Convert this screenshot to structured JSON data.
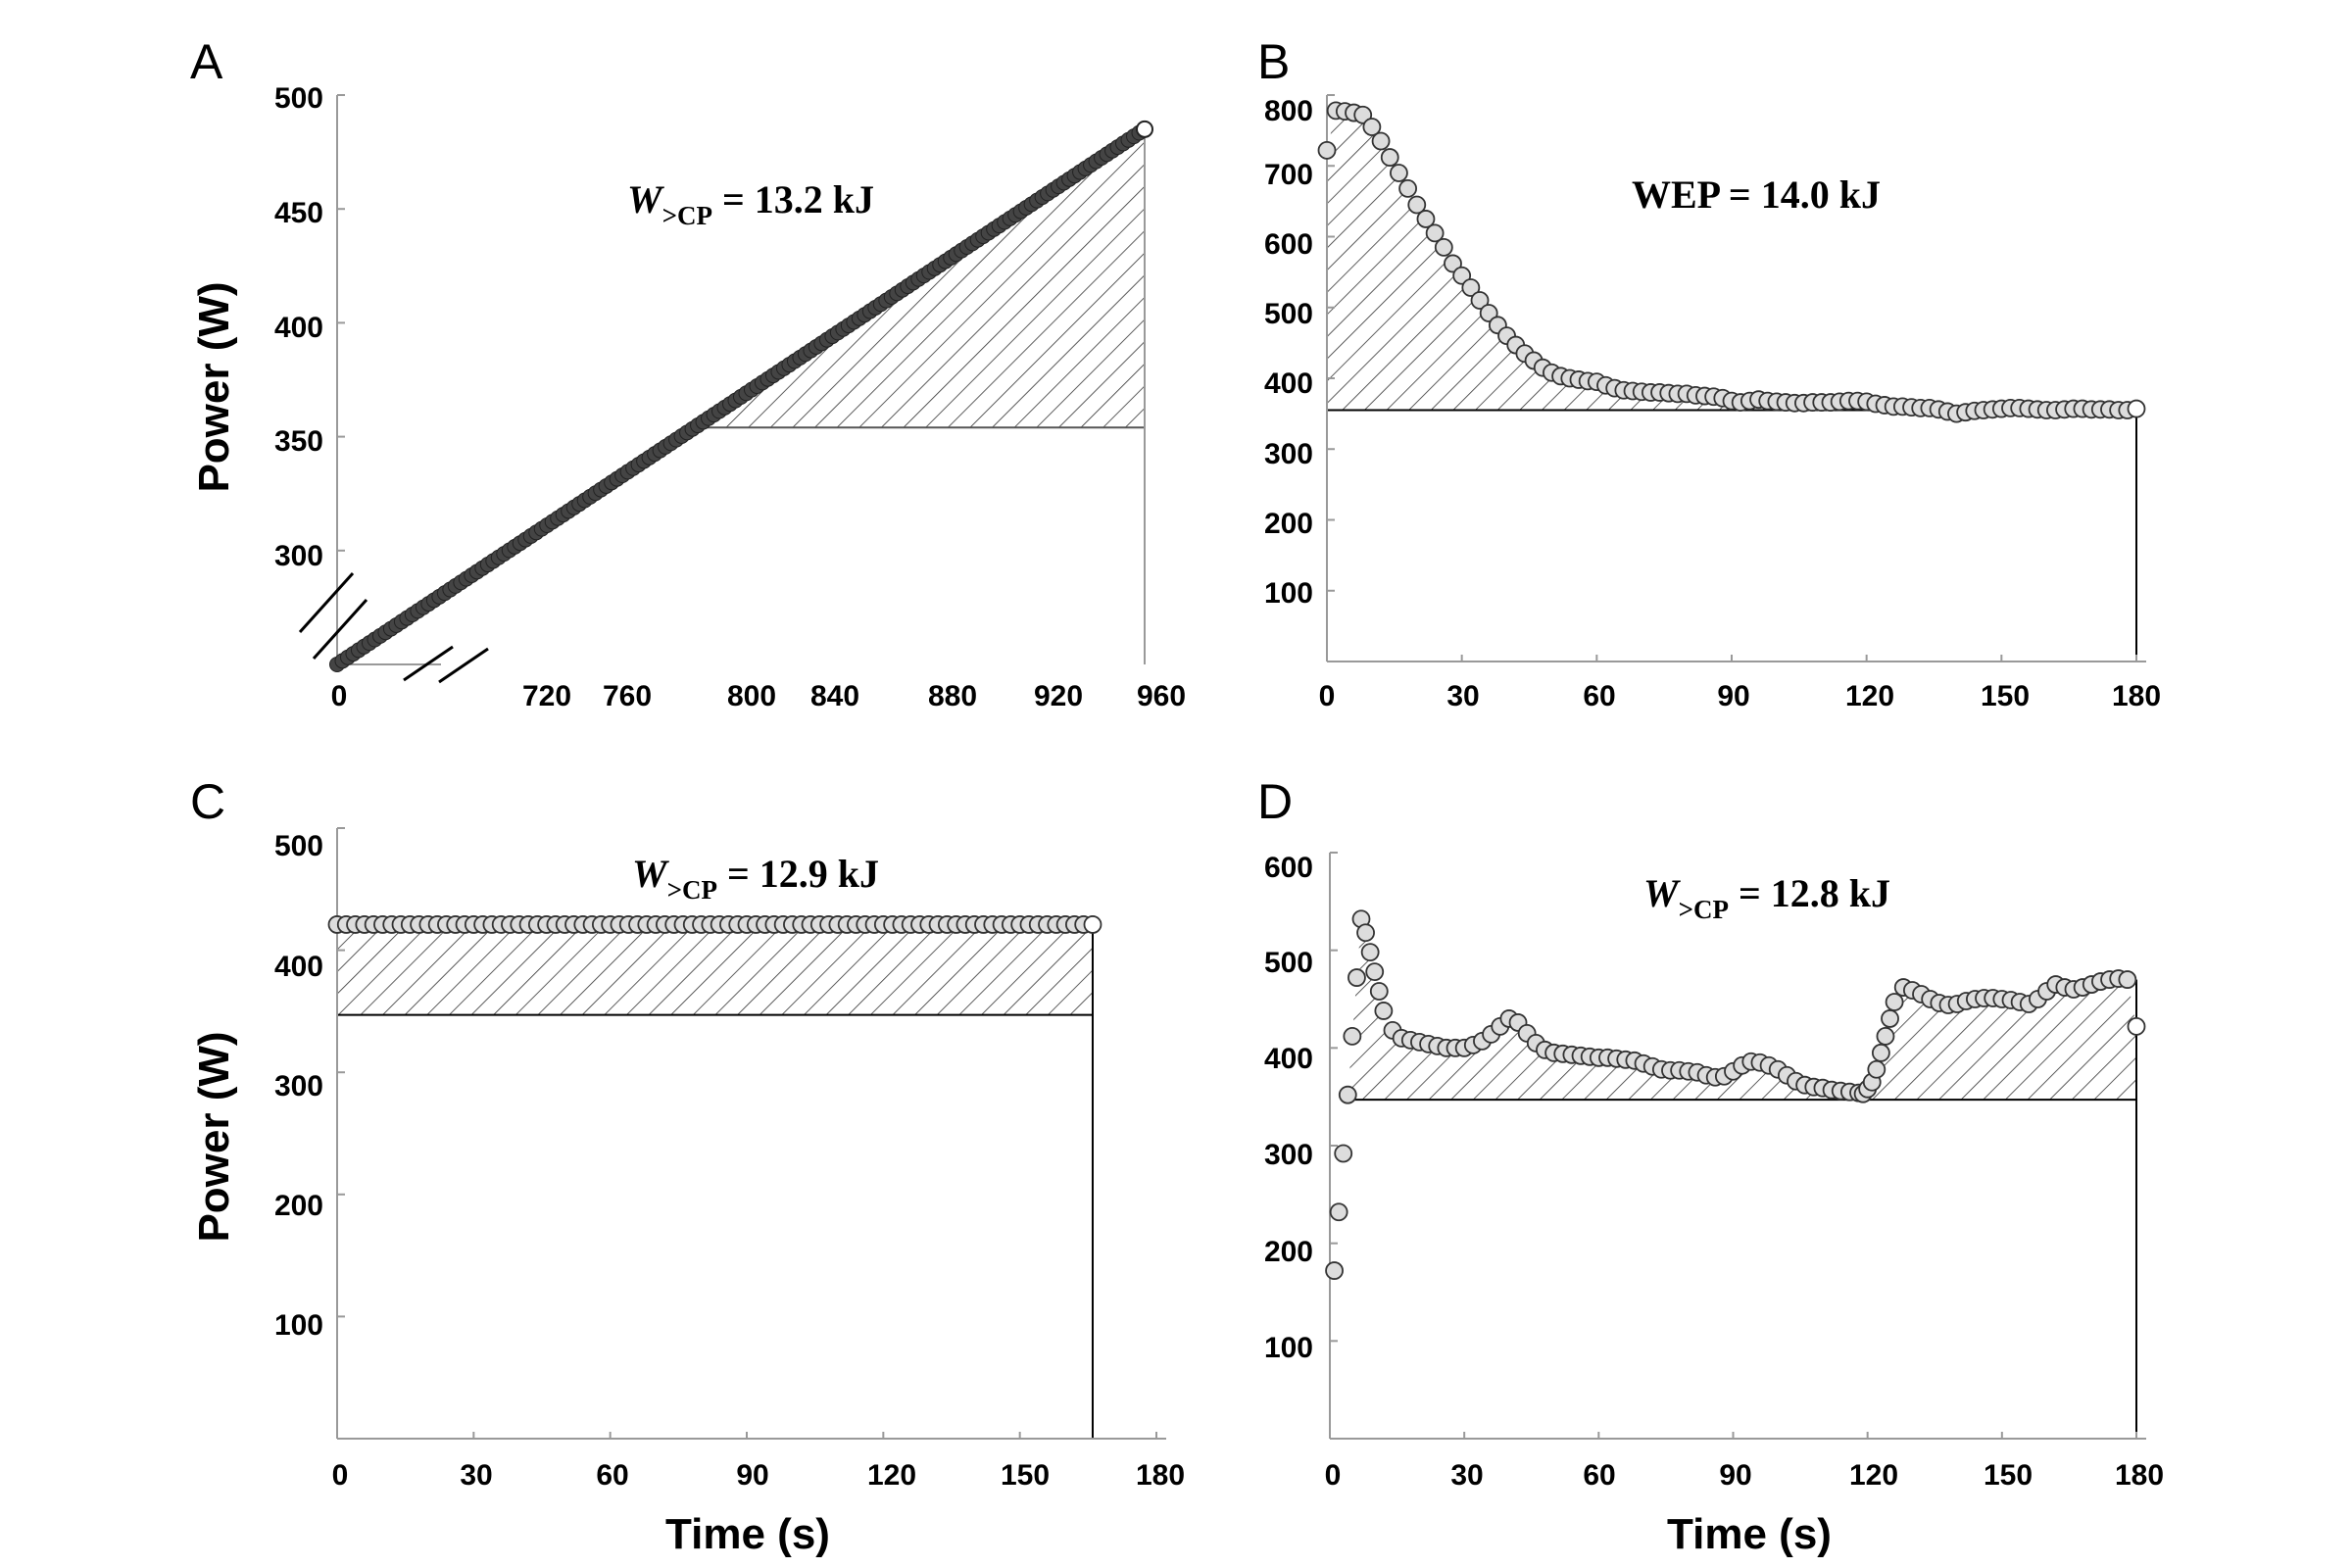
{
  "chart_data": [
    {
      "panel": "A",
      "type": "line",
      "ylabel": "Power (W)",
      "xlabel": "",
      "annotation": {
        "symbol": "W",
        "subscript": ">CP",
        "text": " = 13.2 kJ"
      },
      "x_ticks": [
        "0",
        "720",
        "760",
        "800",
        "840",
        "880",
        "920",
        "960"
      ],
      "y_ticks": [
        "300",
        "350",
        "400",
        "450",
        "500"
      ],
      "xlim": [
        0,
        960
      ],
      "ylim": [
        250,
        500
      ],
      "axis_break": true,
      "critical_power": 354,
      "ramp": {
        "start": {
          "t": 0,
          "power": 250
        },
        "end": {
          "t": 955,
          "power": 485
        }
      },
      "shaded": "area above critical power"
    },
    {
      "panel": "B",
      "type": "scatter",
      "ylabel": "",
      "xlabel": "",
      "annotation": {
        "text": "WEP = 14.0 kJ"
      },
      "x_ticks": [
        "0",
        "30",
        "60",
        "90",
        "120",
        "150",
        "180"
      ],
      "y_ticks": [
        "100",
        "200",
        "300",
        "400",
        "500",
        "600",
        "700",
        "800"
      ],
      "xlim": [
        0,
        180
      ],
      "ylim": [
        0,
        800
      ],
      "critical_power": 355,
      "series": [
        {
          "x": [
            0,
            2,
            4,
            6,
            8,
            10,
            12,
            14,
            16,
            18,
            20,
            22,
            24,
            26,
            28,
            30,
            32,
            34,
            36,
            38,
            40,
            42,
            44,
            46,
            48,
            50,
            52,
            54,
            56,
            58,
            60,
            62,
            64,
            66,
            68,
            70,
            72,
            74,
            76,
            78,
            80,
            82,
            84,
            86,
            88,
            90,
            92,
            94,
            96,
            98,
            100,
            102,
            104,
            106,
            108,
            110,
            112,
            114,
            116,
            118,
            120,
            122,
            124,
            126,
            128,
            130,
            132,
            134,
            136,
            138,
            140,
            142,
            144,
            146,
            148,
            150,
            152,
            154,
            156,
            158,
            160,
            162,
            164,
            166,
            168,
            170,
            172,
            174,
            176,
            178,
            180
          ],
          "y": [
            722,
            778,
            777,
            775,
            772,
            755,
            735,
            712,
            690,
            668,
            645,
            625,
            605,
            585,
            562,
            545,
            528,
            510,
            492,
            475,
            460,
            447,
            435,
            425,
            415,
            408,
            403,
            400,
            398,
            396,
            395,
            390,
            386,
            383,
            382,
            381,
            380,
            380,
            379,
            378,
            378,
            376,
            375,
            374,
            372,
            368,
            366,
            368,
            370,
            368,
            367,
            366,
            365,
            365,
            366,
            366,
            366,
            367,
            368,
            368,
            367,
            364,
            362,
            360,
            360,
            359,
            358,
            358,
            356,
            353,
            350,
            352,
            354,
            355,
            356,
            357,
            358,
            358,
            357,
            356,
            355,
            355,
            356,
            357,
            357,
            356,
            356,
            356,
            355,
            355,
            357
          ]
        }
      ]
    },
    {
      "panel": "C",
      "type": "scatter",
      "ylabel": "Power (W)",
      "xlabel": "Time (s)",
      "annotation": {
        "symbol": "W",
        "subscript": ">CP",
        "text": " = 12.9 kJ"
      },
      "x_ticks": [
        "0",
        "30",
        "60",
        "90",
        "120",
        "150",
        "180"
      ],
      "y_ticks": [
        "100",
        "200",
        "300",
        "400",
        "500"
      ],
      "xlim": [
        0,
        180
      ],
      "ylim": [
        0,
        500
      ],
      "critical_power": 347,
      "end_time": 166,
      "constant_power": 421
    },
    {
      "panel": "D",
      "type": "scatter",
      "ylabel": "",
      "xlabel": "Time (s)",
      "annotation": {
        "symbol": "W",
        "subscript": ">CP",
        "text": " = 12.8 kJ"
      },
      "x_ticks": [
        "0",
        "30",
        "60",
        "90",
        "120",
        "150",
        "180"
      ],
      "y_ticks": [
        "100",
        "200",
        "300",
        "400",
        "500",
        "600"
      ],
      "xlim": [
        0,
        180
      ],
      "ylim": [
        0,
        600
      ],
      "critical_power": 347,
      "series": [
        {
          "x": [
            1,
            2,
            3,
            4,
            5,
            6,
            7,
            8,
            9,
            10,
            11,
            12,
            14,
            16,
            18,
            20,
            22,
            24,
            26,
            28,
            30,
            32,
            34,
            36,
            38,
            40,
            42,
            44,
            46,
            48,
            50,
            52,
            54,
            56,
            58,
            60,
            62,
            64,
            66,
            68,
            70,
            72,
            74,
            76,
            78,
            80,
            82,
            84,
            86,
            88,
            90,
            92,
            94,
            96,
            98,
            100,
            102,
            104,
            106,
            108,
            110,
            112,
            114,
            116,
            118,
            119,
            120,
            121,
            122,
            123,
            124,
            125,
            126,
            128,
            130,
            132,
            134,
            136,
            138,
            140,
            142,
            144,
            146,
            148,
            150,
            152,
            154,
            156,
            158,
            160,
            162,
            164,
            166,
            168,
            170,
            172,
            174,
            176,
            178,
            180
          ],
          "y": [
            172,
            232,
            292,
            352,
            412,
            472,
            532,
            518,
            498,
            478,
            458,
            438,
            418,
            410,
            408,
            406,
            404,
            402,
            400,
            400,
            400,
            403,
            407,
            414,
            422,
            430,
            426,
            415,
            405,
            398,
            395,
            394,
            393,
            392,
            391,
            390,
            390,
            389,
            388,
            387,
            384,
            381,
            378,
            377,
            377,
            376,
            375,
            372,
            370,
            371,
            376,
            382,
            386,
            385,
            382,
            378,
            372,
            366,
            362,
            360,
            359,
            357,
            356,
            355,
            354,
            353,
            358,
            365,
            378,
            395,
            412,
            430,
            447,
            462,
            459,
            455,
            450,
            446,
            444,
            445,
            448,
            450,
            451,
            451,
            450,
            449,
            447,
            445,
            450,
            458,
            465,
            462,
            460,
            462,
            465,
            468,
            470,
            471,
            470,
            422
          ]
        }
      ]
    }
  ]
}
